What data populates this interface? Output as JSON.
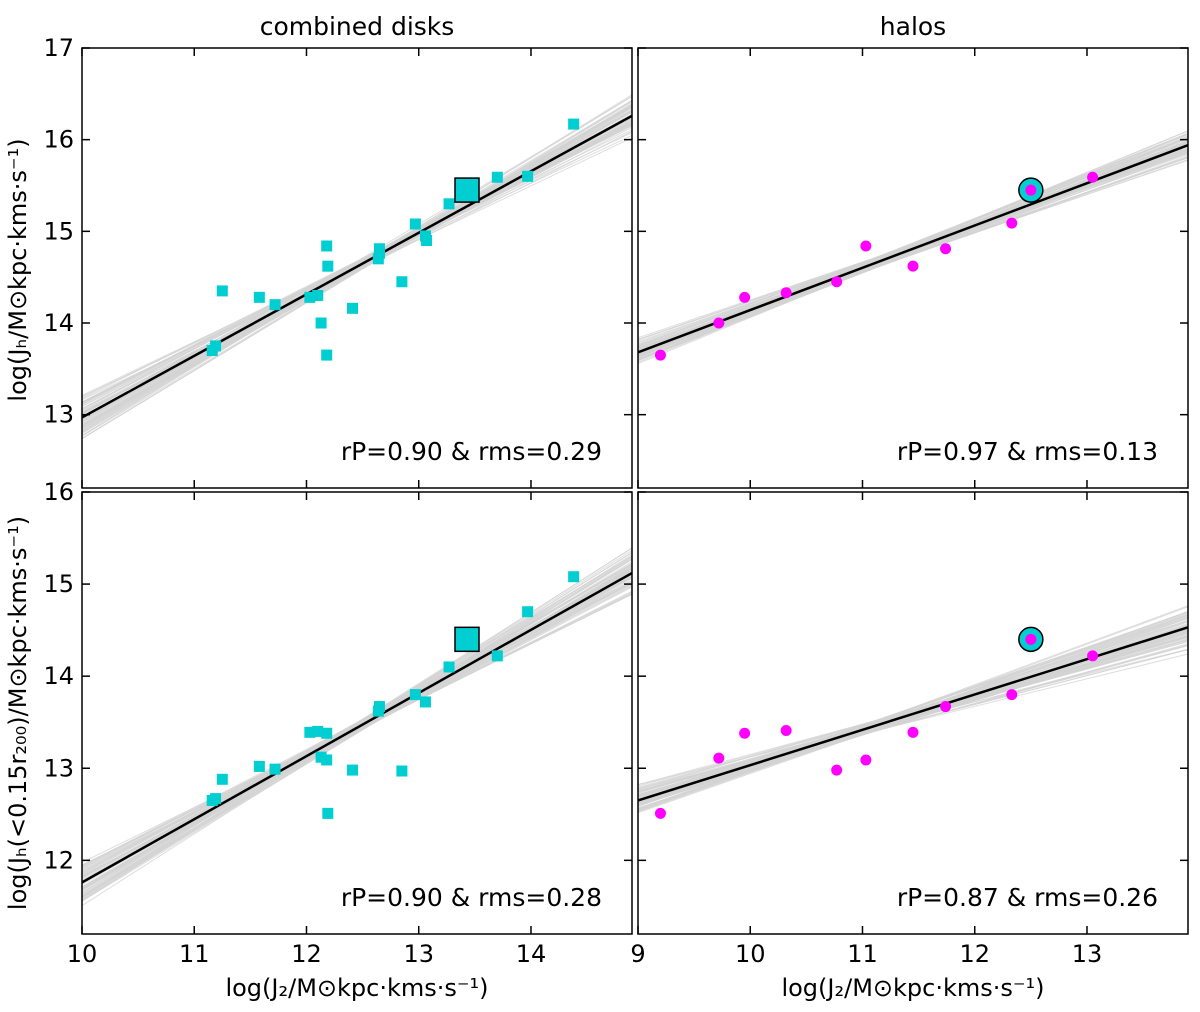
{
  "titles": {
    "left": "combined disks",
    "right": "halos"
  },
  "axes": {
    "x_left": "log(J₂/M⊙kpc·kms·s⁻¹)",
    "x_right": "log(J₂/M⊙kpc·kms·s⁻¹)",
    "y_top": "log(Jₕ/M⊙kpc·kms·s⁻¹)",
    "y_bottom": "log(Jₕ(<0.15r₂₀₀)/M⊙kpc·kms·s⁻¹)"
  },
  "colors": {
    "disk": "#00CED1",
    "halo": "#FF00FF",
    "fit": "#000000",
    "bootstrap": "#d3d3d3"
  },
  "chart_data": [
    {
      "id": "top-left",
      "type": "scatter",
      "marker": "square",
      "title": "combined disks",
      "ylabel": "log(Jh/M⊙kpc·kms·s⁻¹)",
      "xlabel": "",
      "xlim": [
        10,
        14.9
      ],
      "ylim": [
        12.2,
        17
      ],
      "xticks": [],
      "yticks": [
        13,
        14,
        15,
        16,
        17
      ],
      "points": [
        [
          11.16,
          13.7
        ],
        [
          11.19,
          13.75
        ],
        [
          11.25,
          14.35
        ],
        [
          11.58,
          14.28
        ],
        [
          11.72,
          14.2
        ],
        [
          12.03,
          14.28
        ],
        [
          12.1,
          14.3
        ],
        [
          12.13,
          14.0
        ],
        [
          12.18,
          14.84
        ],
        [
          12.19,
          14.62
        ],
        [
          12.18,
          13.65
        ],
        [
          12.41,
          14.16
        ],
        [
          12.64,
          14.7
        ],
        [
          12.65,
          14.76
        ],
        [
          12.65,
          14.81
        ],
        [
          12.85,
          14.45
        ],
        [
          12.97,
          15.08
        ],
        [
          13.06,
          14.95
        ],
        [
          13.07,
          14.9
        ],
        [
          13.27,
          15.3
        ],
        [
          13.7,
          15.59
        ],
        [
          13.97,
          15.6
        ],
        [
          14.38,
          16.17
        ]
      ],
      "highlight": [
        13.43,
        15.45
      ],
      "fit": {
        "x": [
          10,
          14.9
        ],
        "y": [
          12.97,
          16.26
        ]
      },
      "annotation": "rP=0.90 & rms=0.29"
    },
    {
      "id": "top-right",
      "type": "scatter",
      "marker": "circle",
      "title": "halos",
      "ylabel": "",
      "xlabel": "",
      "xlim": [
        9,
        13.9
      ],
      "ylim": [
        12.2,
        17
      ],
      "xticks": [],
      "yticks": [],
      "points": [
        [
          9.2,
          13.65
        ],
        [
          9.72,
          14.0
        ],
        [
          9.95,
          14.28
        ],
        [
          10.32,
          14.33
        ],
        [
          10.77,
          14.45
        ],
        [
          11.03,
          14.84
        ],
        [
          11.45,
          14.62
        ],
        [
          11.74,
          14.81
        ],
        [
          12.33,
          15.09
        ],
        [
          12.5,
          15.45
        ],
        [
          13.05,
          15.59
        ]
      ],
      "highlight": [
        12.5,
        15.45
      ],
      "fit": {
        "x": [
          9,
          13.9
        ],
        "y": [
          13.68,
          15.94
        ]
      },
      "annotation": "rP=0.97 & rms=0.13"
    },
    {
      "id": "bottom-left",
      "type": "scatter",
      "marker": "square",
      "title": "",
      "ylabel": "log(Jh(<0.15r200)/M⊙kpc·kms·s⁻¹)",
      "xlabel": "log(Jz/M⊙kpc·kms·s⁻¹)",
      "xlim": [
        10,
        14.9
      ],
      "ylim": [
        11.2,
        16
      ],
      "xticks": [
        10,
        11,
        12,
        13,
        14
      ],
      "yticks": [
        12,
        13,
        14,
        15,
        16
      ],
      "points": [
        [
          11.16,
          12.65
        ],
        [
          11.19,
          12.67
        ],
        [
          11.25,
          12.88
        ],
        [
          11.58,
          13.02
        ],
        [
          11.72,
          12.99
        ],
        [
          12.03,
          13.39
        ],
        [
          12.1,
          13.4
        ],
        [
          12.13,
          13.12
        ],
        [
          12.18,
          13.38
        ],
        [
          12.18,
          13.09
        ],
        [
          12.19,
          12.51
        ],
        [
          12.41,
          12.98
        ],
        [
          12.64,
          13.62
        ],
        [
          12.65,
          13.67
        ],
        [
          12.85,
          12.97
        ],
        [
          12.97,
          13.8
        ],
        [
          13.06,
          13.72
        ],
        [
          13.27,
          14.1
        ],
        [
          13.7,
          14.22
        ],
        [
          13.97,
          14.7
        ],
        [
          14.38,
          15.08
        ]
      ],
      "highlight": [
        13.43,
        14.4
      ],
      "fit": {
        "x": [
          10,
          14.9
        ],
        "y": [
          11.76,
          15.12
        ]
      },
      "annotation": "rP=0.90 & rms=0.28"
    },
    {
      "id": "bottom-right",
      "type": "scatter",
      "marker": "circle",
      "title": "",
      "ylabel": "",
      "xlabel": "log(Jz/M⊙kpc·kms·s⁻¹)",
      "xlim": [
        9,
        13.9
      ],
      "ylim": [
        11.2,
        16
      ],
      "xticks": [
        9,
        10,
        11,
        12,
        13
      ],
      "yticks": [],
      "points": [
        [
          9.2,
          12.51
        ],
        [
          9.72,
          13.11
        ],
        [
          9.95,
          13.38
        ],
        [
          10.32,
          13.41
        ],
        [
          10.77,
          12.98
        ],
        [
          11.03,
          13.09
        ],
        [
          11.45,
          13.39
        ],
        [
          11.74,
          13.67
        ],
        [
          12.33,
          13.8
        ],
        [
          12.5,
          14.4
        ],
        [
          13.05,
          14.22
        ]
      ],
      "highlight": [
        12.5,
        14.4
      ],
      "fit": {
        "x": [
          9,
          13.9
        ],
        "y": [
          12.65,
          14.53
        ]
      },
      "annotation": "rP=0.87 & rms=0.26"
    }
  ]
}
